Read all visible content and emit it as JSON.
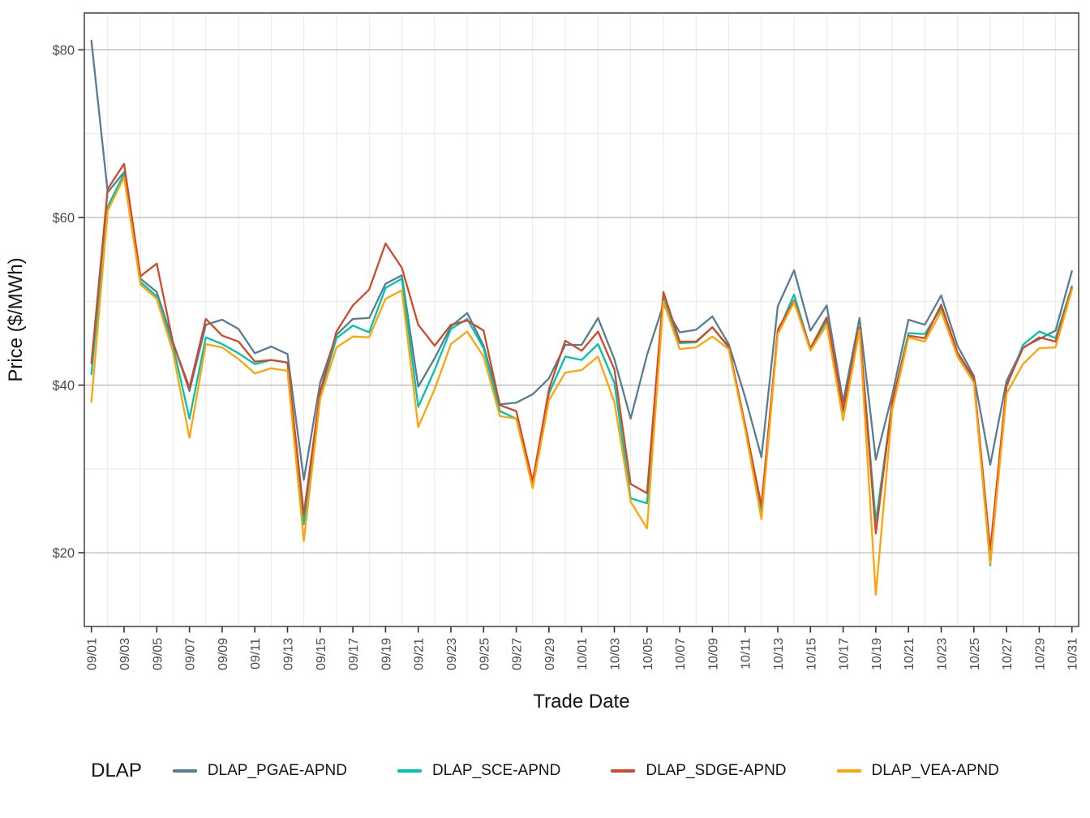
{
  "axes": {
    "x_label": "Trade Date",
    "y_label": "Price ($/MWh)",
    "y_tick_labels": [
      "$20",
      "$40",
      "$60",
      "$80"
    ]
  },
  "legend": {
    "title": "DLAP",
    "position": "bottom",
    "entries": [
      "DLAP_PGAE-APND",
      "DLAP_SCE-APND",
      "DLAP_SDGE-APND",
      "DLAP_VEA-APND"
    ]
  },
  "colors": {
    "grid_major": "#a6a6a6",
    "grid_minor": "#e9e9e9",
    "panel_border": "#333333",
    "tick_mark": "#333333"
  },
  "chart_data": {
    "type": "line",
    "title": "",
    "xlabel": "Trade Date",
    "ylabel": "Price ($/MWh)",
    "ylim": [
      11.2,
      84.4
    ],
    "y_major_breaks": [
      20,
      40,
      60,
      80
    ],
    "y_minor_breaks": [
      30,
      50,
      70
    ],
    "y_tick_labels": [
      "$20",
      "$40",
      "$60",
      "$80"
    ],
    "x_tick_every": 2,
    "grid": "major-and-minor",
    "legend_position": "bottom",
    "x": [
      "09/01",
      "09/02",
      "09/03",
      "09/04",
      "09/05",
      "09/06",
      "09/07",
      "09/08",
      "09/09",
      "09/10",
      "09/11",
      "09/12",
      "09/13",
      "09/14",
      "09/15",
      "09/16",
      "09/17",
      "09/18",
      "09/19",
      "09/20",
      "09/21",
      "09/22",
      "09/23",
      "09/24",
      "09/25",
      "09/26",
      "09/27",
      "09/28",
      "09/29",
      "09/30",
      "10/01",
      "10/02",
      "10/03",
      "10/04",
      "10/05",
      "10/06",
      "10/07",
      "10/08",
      "10/09",
      "10/10",
      "10/11",
      "10/12",
      "10/13",
      "10/14",
      "10/15",
      "10/16",
      "10/17",
      "10/18",
      "10/19",
      "10/20",
      "10/21",
      "10/22",
      "10/23",
      "10/24",
      "10/25",
      "10/26",
      "10/27",
      "10/28",
      "10/29",
      "10/30",
      "10/31"
    ],
    "series": [
      {
        "name": "DLAP_PGAE-APND",
        "color": "#567d92",
        "values": [
          81.1,
          63.0,
          65.4,
          52.7,
          51.1,
          45.1,
          39.3,
          47.2,
          47.8,
          46.7,
          43.8,
          44.6,
          43.7,
          28.7,
          40.3,
          46.0,
          47.9,
          48.0,
          52.1,
          53.1,
          39.8,
          43.2,
          47.0,
          48.6,
          44.7,
          37.7,
          37.9,
          38.9,
          40.8,
          44.8,
          44.8,
          48.0,
          43.1,
          36.0,
          43.6,
          49.6,
          46.3,
          46.6,
          48.2,
          44.9,
          38.6,
          31.4,
          49.4,
          53.7,
          46.5,
          49.5,
          38.0,
          48.0,
          31.1,
          38.8,
          47.8,
          47.2,
          50.7,
          44.7,
          41.1,
          30.5,
          40.5,
          44.5,
          45.5,
          46.5,
          53.6
        ]
      },
      {
        "name": "DLAP_SCE-APND",
        "color": "#00c2b2",
        "values": [
          41.3,
          61.3,
          65.2,
          52.3,
          50.6,
          44.7,
          36.0,
          45.7,
          44.9,
          43.8,
          42.5,
          43.0,
          42.7,
          23.4,
          38.9,
          45.6,
          47.1,
          46.3,
          51.6,
          52.7,
          37.4,
          41.8,
          46.7,
          47.9,
          44.4,
          36.9,
          36.0,
          28.2,
          39.0,
          43.4,
          43.0,
          44.9,
          40.3,
          26.5,
          25.9,
          50.4,
          45.0,
          45.1,
          46.9,
          44.5,
          35.0,
          25.0,
          46.3,
          50.8,
          44.3,
          47.7,
          36.8,
          46.7,
          23.7,
          37.8,
          46.2,
          46.1,
          49.2,
          43.7,
          40.7,
          18.5,
          39.8,
          44.8,
          46.4,
          45.6,
          51.8
        ]
      },
      {
        "name": "DLAP_SDGE-APND",
        "color": "#d0492a",
        "values": [
          42.6,
          63.4,
          66.4,
          53.0,
          54.5,
          45.0,
          39.7,
          47.9,
          45.9,
          45.2,
          42.8,
          43.0,
          42.7,
          24.6,
          39.2,
          46.4,
          49.5,
          51.4,
          56.9,
          54.0,
          47.2,
          44.7,
          47.2,
          47.7,
          46.5,
          37.6,
          36.9,
          28.5,
          39.5,
          45.3,
          44.1,
          46.4,
          41.9,
          28.2,
          27.1,
          51.1,
          45.2,
          45.2,
          46.9,
          44.6,
          35.3,
          25.6,
          46.6,
          50.1,
          44.4,
          48.1,
          37.1,
          46.9,
          22.3,
          37.9,
          45.9,
          45.6,
          49.6,
          43.9,
          40.8,
          20.3,
          40.0,
          44.4,
          45.7,
          45.2,
          51.6
        ]
      },
      {
        "name": "DLAP_VEA-APND",
        "color": "#ffa408",
        "values": [
          38.0,
          60.8,
          64.8,
          52.0,
          50.3,
          43.9,
          33.7,
          44.9,
          44.5,
          43.1,
          41.4,
          42.0,
          41.7,
          21.4,
          38.4,
          44.5,
          45.8,
          45.7,
          50.3,
          51.3,
          35.0,
          39.5,
          44.9,
          46.4,
          43.4,
          36.3,
          36.0,
          27.7,
          38.2,
          41.5,
          41.8,
          43.4,
          38.0,
          26.1,
          22.9,
          50.0,
          44.3,
          44.5,
          45.8,
          44.3,
          34.8,
          24.0,
          46.1,
          49.9,
          44.1,
          47.2,
          35.8,
          46.6,
          15.0,
          37.0,
          45.7,
          45.2,
          48.8,
          43.4,
          40.3,
          18.7,
          39.0,
          42.5,
          44.4,
          44.5,
          51.4
        ]
      }
    ]
  }
}
